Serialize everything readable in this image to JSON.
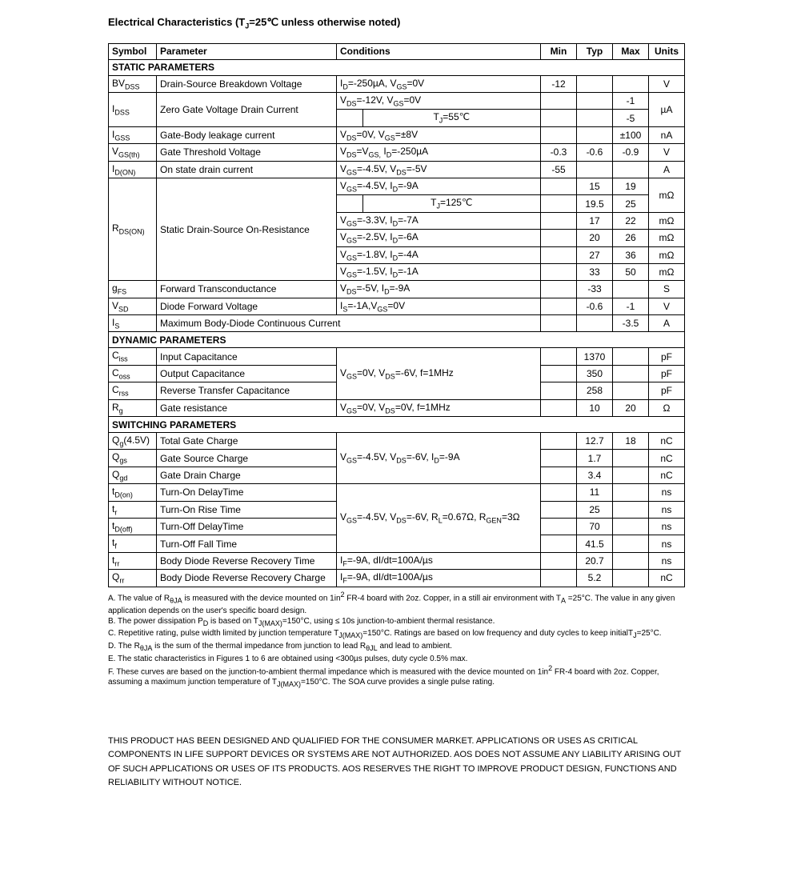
{
  "title": "Electrical Characteristics (T<sub>J</sub>=25℃ unless otherwise noted)",
  "headers": {
    "symbol": "Symbol",
    "parameter": "Parameter",
    "conditions": "Conditions",
    "min": "Min",
    "typ": "Typ",
    "max": "Max",
    "units": "Units"
  },
  "sections": {
    "static": "STATIC PARAMETERS",
    "dynamic": "DYNAMIC PARAMETERS",
    "switching": "SWITCHING PARAMETERS"
  },
  "rows": {
    "bvdss": {
      "sym": "BV<sub>DSS</sub>",
      "param": "Drain-Source Breakdown Voltage",
      "cond": "I<sub>D</sub>=-250µA, V<sub>GS</sub>=0V",
      "min": "-12",
      "typ": "",
      "max": "",
      "units": "V"
    },
    "idss1": {
      "sym": "I<sub>DSS</sub>",
      "param": "Zero Gate Voltage Drain Current",
      "cond": "V<sub>DS</sub>=-12V, V<sub>GS</sub>=0V",
      "max": "-1",
      "units": "µA"
    },
    "idss2": {
      "cond2": "T<sub>J</sub>=55℃",
      "max": "-5"
    },
    "igss": {
      "sym": "I<sub>GSS</sub>",
      "param": "Gate-Body leakage current",
      "cond": "V<sub>DS</sub>=0V, V<sub>GS</sub>=±8V",
      "min": "",
      "typ": "",
      "max": "±100",
      "units": "nA"
    },
    "vgsth": {
      "sym": "V<sub>GS(th)</sub>",
      "param": "Gate Threshold Voltage",
      "cond": "V<sub>DS</sub>=V<sub>GS,</sub> I<sub>D</sub>=-250µA",
      "min": "-0.3",
      "typ": "-0.6",
      "max": "-0.9",
      "units": "V"
    },
    "idon": {
      "sym": "I<sub>D(ON)</sub>",
      "param": "On state drain current",
      "cond": "V<sub>GS</sub>=-4.5V, V<sub>DS</sub>=-5V",
      "min": "-55",
      "typ": "",
      "max": "",
      "units": "A"
    },
    "rds1": {
      "sym": "R<sub>DS(ON)</sub>",
      "param": "Static Drain-Source On-Resistance",
      "cond": "V<sub>GS</sub>=-4.5V, I<sub>D</sub>=-9A",
      "typ": "15",
      "max": "19",
      "units": "mΩ"
    },
    "rds1b": {
      "cond2": "T<sub>J</sub>=125℃",
      "typ": "19.5",
      "max": "25"
    },
    "rds2": {
      "cond": "V<sub>GS</sub>=-3.3V, I<sub>D</sub>=-7A",
      "typ": "17",
      "max": "22",
      "units": "mΩ"
    },
    "rds3": {
      "cond": "V<sub>GS</sub>=-2.5V, I<sub>D</sub>=-6A",
      "typ": "20",
      "max": "26",
      "units": "mΩ"
    },
    "rds4": {
      "cond": "V<sub>GS</sub>=-1.8V, I<sub>D</sub>=-4A",
      "typ": "27",
      "max": "36",
      "units": "mΩ"
    },
    "rds5": {
      "cond": "V<sub>GS</sub>=-1.5V, I<sub>D</sub>=-1A",
      "typ": "33",
      "max": "50",
      "units": "mΩ"
    },
    "gfs": {
      "sym": "g<sub>FS</sub>",
      "param": "Forward Transconductance",
      "cond": "V<sub>DS</sub>=-5V, I<sub>D</sub>=-9A",
      "min": "",
      "typ": "-33",
      "max": "",
      "units": "S"
    },
    "vsd": {
      "sym": "V<sub>SD</sub>",
      "param": "Diode Forward Voltage",
      "cond": "I<sub>S</sub>=-1A,V<sub>GS</sub>=0V",
      "min": "",
      "typ": "-0.6",
      "max": "-1",
      "units": "V"
    },
    "is": {
      "sym": "I<sub>S</sub>",
      "param": "Maximum Body-Diode Continuous Current",
      "min": "",
      "typ": "",
      "max": "-3.5",
      "units": "A"
    },
    "ciss": {
      "sym": "C<sub>iss</sub>",
      "param": "Input Capacitance",
      "cond": "V<sub>GS</sub>=0V, V<sub>DS</sub>=-6V, f=1MHz",
      "typ": "1370",
      "units": "pF"
    },
    "coss": {
      "sym": "C<sub>oss</sub>",
      "param": "Output Capacitance",
      "typ": "350",
      "units": "pF"
    },
    "crss": {
      "sym": "C<sub>rss</sub>",
      "param": "Reverse Transfer Capacitance",
      "typ": "258",
      "units": "pF"
    },
    "rg": {
      "sym": "R<sub>g</sub>",
      "param": "Gate resistance",
      "cond": "V<sub>GS</sub>=0V, V<sub>DS</sub>=0V, f=1MHz",
      "typ": "10",
      "max": "20",
      "units": "Ω"
    },
    "qg": {
      "sym": "Q<sub>g</sub>(4.5V)",
      "param": "Total Gate Charge",
      "cond": "V<sub>GS</sub>=-4.5V, V<sub>DS</sub>=-6V, I<sub>D</sub>=-9A",
      "typ": "12.7",
      "max": "18",
      "units": "nC"
    },
    "qgs": {
      "sym": "Q<sub>gs</sub>",
      "param": "Gate Source Charge",
      "typ": "1.7",
      "units": "nC"
    },
    "qgd": {
      "sym": "Q<sub>gd</sub>",
      "param": "Gate Drain Charge",
      "typ": "3.4",
      "units": "nC"
    },
    "tdon": {
      "sym": "t<sub>D(on)</sub>",
      "param": "Turn-On DelayTime",
      "cond": "V<sub>GS</sub>=-4.5V, V<sub>DS</sub>=-6V, R<sub>L</sub>=0.67Ω, R<sub>GEN</sub>=3Ω",
      "typ": "11",
      "units": "ns"
    },
    "tr": {
      "sym": "t<sub>r</sub>",
      "param": "Turn-On Rise Time",
      "typ": "25",
      "units": "ns"
    },
    "tdoff": {
      "sym": "t<sub>D(off)</sub>",
      "param": "Turn-Off DelayTime",
      "typ": "70",
      "units": "ns"
    },
    "tf": {
      "sym": "t<sub>f</sub>",
      "param": "Turn-Off Fall Time",
      "typ": "41.5",
      "units": "ns"
    },
    "trr": {
      "sym": "t<sub>rr</sub>",
      "param": "Body Diode Reverse Recovery Time",
      "cond": "I<sub>F</sub>=-9A, dI/dt=100A/µs",
      "typ": "20.7",
      "units": "ns"
    },
    "qrr": {
      "sym": "Q<sub>rr</sub>",
      "param": "Body Diode Reverse Recovery Charge",
      "cond": "I<sub>F</sub>=-9A, dI/dt=100A/µs",
      "typ": "5.2",
      "units": "nC"
    }
  },
  "notes": {
    "a": "A. The value of R<sub>θJA</sub> is measured with the device mounted on 1in<sup>2</sup> FR-4 board with 2oz. Copper, in a still air environment with T<sub>A</sub> =25°C. The value in any given application depends on the user's specific board design.",
    "b": "B. The power dissipation P<sub>D</sub> is based on T<sub>J(MAX)</sub>=150°C, using ≤ 10s junction-to-ambient thermal resistance.",
    "c": "C.  Repetitive rating, pulse width limited by junction temperature T<sub>J(MAX)</sub>=150°C. Ratings are based on low frequency and duty cycles to keep initialT<sub>J</sub>=25°C.",
    "d": "D. The R<sub>θJA</sub> is the sum of the thermal impedance from junction to lead R<sub>θJL</sub> and lead to ambient.",
    "e": "E. The static characteristics in Figures 1 to 6 are obtained using <300µs pulses, duty cycle 0.5% max.",
    "f": "F. These curves are based on the junction-to-ambient thermal impedance which is measured with the device mounted on 1in<sup>2</sup>  FR-4 board with 2oz. Copper, assuming a maximum junction temperature of T<sub>J(MAX)</sub>=150°C. The SOA curve provides a single pulse rating."
  },
  "disclaimer": "THIS PRODUCT HAS BEEN DESIGNED AND QUALIFIED FOR THE CONSUMER MARKET. APPLICATIONS OR USES AS CRITICAL COMPONENTS IN LIFE SUPPORT DEVICES OR SYSTEMS ARE NOT AUTHORIZED. AOS DOES NOT ASSUME ANY LIABILITY ARISING OUT OF SUCH APPLICATIONS OR USES OF ITS PRODUCTS.  AOS RESERVES THE RIGHT TO IMPROVE PRODUCT DESIGN, FUNCTIONS AND RELIABILITY WITHOUT NOTICE."
}
